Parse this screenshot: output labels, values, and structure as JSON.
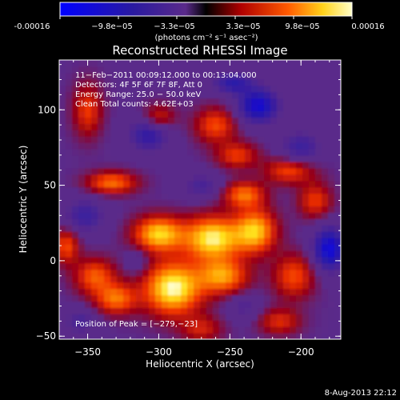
{
  "colorbar": {
    "tick_labels": [
      "-0.00016",
      "−9.8e−05",
      "−3.3e−05",
      "3.3e−05",
      "9.8e−05",
      "0.00016"
    ],
    "unit_label": "(photons cm⁻² s⁻¹ asec⁻²)"
  },
  "footer": {
    "timestamp": "8-Aug-2013 22:12"
  },
  "chart_data": {
    "type": "heatmap",
    "title": "Reconstructed RHESSI Image",
    "xlabel": "Heliocentric X (arcsec)",
    "ylabel": "Heliocentric Y (arcsec)",
    "xlim": [
      -370,
      -172
    ],
    "ylim": [
      -52,
      133
    ],
    "xticks": [
      -350,
      -300,
      -250,
      -200
    ],
    "yticks": [
      -50,
      0,
      50,
      100
    ],
    "x_tick_labels": [
      "−350",
      "−300",
      "−250",
      "−200"
    ],
    "y_tick_labels": [
      "−50",
      "0",
      "50",
      "100"
    ],
    "colorbar_range": [
      -0.00016,
      0.00016
    ],
    "annotations": [
      "11−Feb−2011 00:09:12.000  to  00:13:04.000",
      "Detectors: 4F 5F 6F 7F 8F, Att 0",
      "Energy Range: 25.0 − 50.0 keV",
      "Clean     Total counts: 4.62E+03"
    ],
    "peak_label": "Position of Peak = [−279,−23]",
    "blobs": [
      {
        "x": -290,
        "y": -18,
        "v": 1.0,
        "sx": 14,
        "sy": 12
      },
      {
        "x": -262,
        "y": 15,
        "v": 0.95,
        "sx": 14,
        "sy": 10
      },
      {
        "x": -300,
        "y": 18,
        "v": 0.85,
        "sx": 12,
        "sy": 8
      },
      {
        "x": -232,
        "y": 20,
        "v": 0.8,
        "sx": 10,
        "sy": 10
      },
      {
        "x": -255,
        "y": -10,
        "v": 0.7,
        "sx": 12,
        "sy": 8
      },
      {
        "x": -240,
        "y": 44,
        "v": 0.6,
        "sx": 10,
        "sy": 6
      },
      {
        "x": -333,
        "y": 52,
        "v": 0.6,
        "sx": 12,
        "sy": 5
      },
      {
        "x": -208,
        "y": 60,
        "v": 0.5,
        "sx": 12,
        "sy": 6
      },
      {
        "x": -350,
        "y": 100,
        "v": 0.45,
        "sx": 7,
        "sy": 12
      },
      {
        "x": -345,
        "y": -10,
        "v": 0.55,
        "sx": 10,
        "sy": 8
      },
      {
        "x": -330,
        "y": -25,
        "v": 0.6,
        "sx": 10,
        "sy": 7
      },
      {
        "x": -260,
        "y": 90,
        "v": 0.5,
        "sx": 10,
        "sy": 8
      },
      {
        "x": -245,
        "y": 70,
        "v": 0.45,
        "sx": 10,
        "sy": 6
      },
      {
        "x": -205,
        "y": -10,
        "v": 0.5,
        "sx": 10,
        "sy": 10
      },
      {
        "x": -190,
        "y": 40,
        "v": 0.45,
        "sx": 8,
        "sy": 8
      },
      {
        "x": -365,
        "y": 10,
        "v": 0.5,
        "sx": 6,
        "sy": 8
      },
      {
        "x": -300,
        "y": 95,
        "v": 0.4,
        "sx": 8,
        "sy": 6
      },
      {
        "x": -215,
        "y": -40,
        "v": 0.4,
        "sx": 10,
        "sy": 6
      },
      {
        "x": -270,
        "y": -45,
        "v": 0.35,
        "sx": 10,
        "sy": 6
      },
      {
        "x": -230,
        "y": 103,
        "v": -0.75,
        "sx": 10,
        "sy": 8
      },
      {
        "x": -307,
        "y": 84,
        "v": -0.5,
        "sx": 10,
        "sy": 8
      },
      {
        "x": -180,
        "y": 8,
        "v": -0.8,
        "sx": 8,
        "sy": 10
      },
      {
        "x": -352,
        "y": 30,
        "v": -0.4,
        "sx": 10,
        "sy": 8
      },
      {
        "x": -248,
        "y": 118,
        "v": -0.5,
        "sx": 10,
        "sy": 5
      },
      {
        "x": -270,
        "y": 50,
        "v": -0.3,
        "sx": 10,
        "sy": 6
      },
      {
        "x": -200,
        "y": 75,
        "v": -0.4,
        "sx": 10,
        "sy": 8
      },
      {
        "x": -355,
        "y": -40,
        "v": -0.3,
        "sx": 8,
        "sy": 6
      },
      {
        "x": -240,
        "y": -30,
        "v": -0.25,
        "sx": 8,
        "sy": 6
      },
      {
        "x": -315,
        "y": 0,
        "v": -0.2,
        "sx": 6,
        "sy": 6
      }
    ]
  }
}
